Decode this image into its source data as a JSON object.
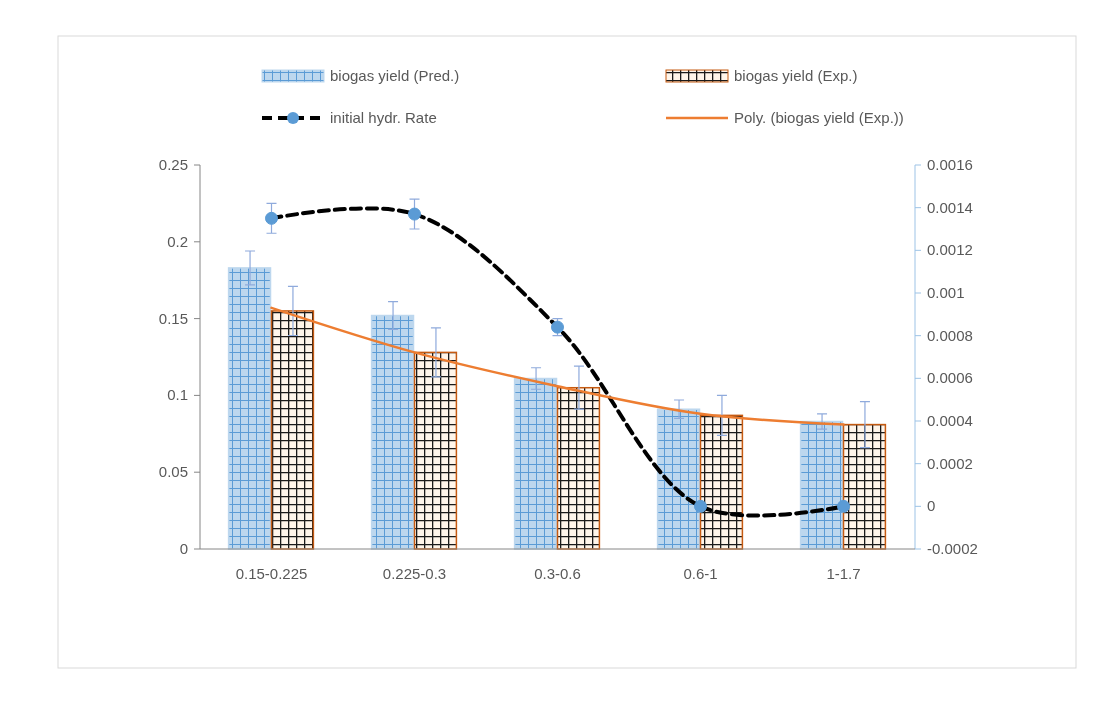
{
  "chart_data": {
    "type": "bar",
    "categories": [
      "0.15-0.225",
      "0.225-0.3",
      "0.3-0.6",
      "0.6-1",
      "1-1.7"
    ],
    "series": [
      {
        "name": "biogas yield (Pred.)",
        "color": "#bdd7ee",
        "values": [
          0.183,
          0.152,
          0.111,
          0.091,
          0.083
        ],
        "errors": [
          0.011,
          0.009,
          0.007,
          0.006,
          0.005
        ]
      },
      {
        "name": "biogas yield (Exp.)",
        "color": "#c55a11",
        "values": [
          0.155,
          0.128,
          0.105,
          0.087,
          0.081
        ],
        "errors": [
          0.016,
          0.016,
          0.014,
          0.013,
          0.015
        ]
      },
      {
        "name": "initial hydr. Rate",
        "type": "line",
        "axis": "y2",
        "color": "#000000",
        "marker": "circle",
        "line_style": "dashed",
        "values": [
          0.00135,
          0.00137,
          0.00084,
          0.0,
          0.0
        ],
        "errors": [
          7e-05,
          7e-05,
          4e-05,
          null,
          null
        ]
      },
      {
        "name": "Poly. (biogas yield (Exp.))",
        "type": "line",
        "color": "#ed7d31",
        "marker": "none",
        "line_style": "solid",
        "values": [
          0.157,
          0.128,
          0.106,
          0.088,
          0.081
        ]
      }
    ],
    "ylim": [
      0,
      0.25
    ],
    "yticks": [
      0,
      0.05,
      0.1,
      0.15,
      0.2,
      0.25
    ],
    "y2lim": [
      -0.0002,
      0.0016
    ],
    "y2ticks": [
      -0.0002,
      0,
      0.0002,
      0.0004,
      0.0006,
      0.0008,
      0.001,
      0.0012,
      0.0014,
      0.0016
    ],
    "legend": "top",
    "grid": false
  }
}
